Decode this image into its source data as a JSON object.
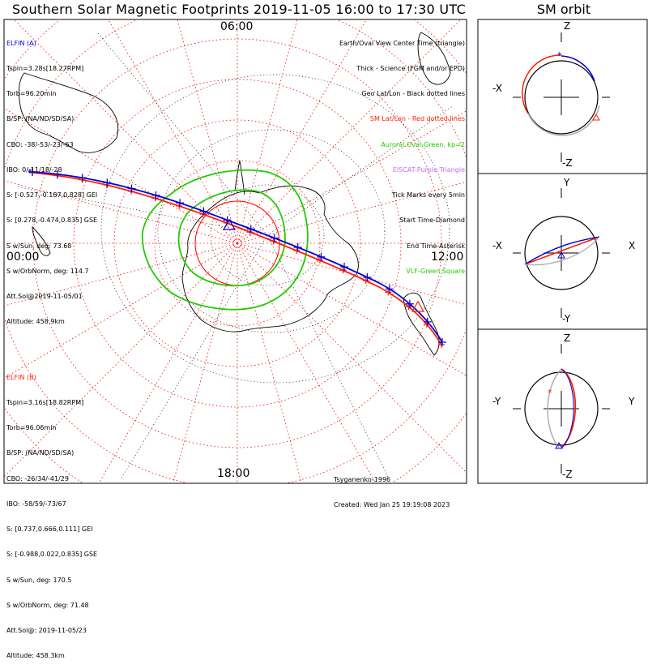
{
  "title": "Southern Solar Magnetic Footprints 2019-11-05 16:00 to 17:30 UTC",
  "sm_title": "SM orbit",
  "clock": {
    "top": "06:00",
    "left": "00:00",
    "right": "12:00",
    "bottom": "18:00"
  },
  "elfin_a": {
    "lines": [
      "ELFIN (A)",
      "Tspin=3.28s[18.27RPM]",
      "Torb=96.20min",
      "B/SP: (NA/ND/SD/SA)",
      "CBO: -38/-53/-23/-63",
      "IBO: 0/-11/18/-28",
      "S: [-0.527,-0.187,0.828] GEI",
      "S: [0.278,-0.474,0.835] GSE",
      "S w/Sun, deg: 73.68",
      "S w/OrbNorm, deg: 114.7",
      "Att.Sol@2019-11-05/01",
      "Altitude: 458.9km"
    ]
  },
  "elfin_b": {
    "lines": [
      "ELFIN (B)",
      "Tspin=3.16s[18.82RPM]",
      "Torb=96.06min",
      "B/SP: (NA/ND/SD/SA)",
      "CBO: -26/34/-41/29",
      "IBO: -58/59/-73/67",
      "S: [0.737,0.666,0.111] GEI",
      "S: [-0.988,0.022,0.835] GSE",
      "S w/Sun, deg: 170.5",
      "S w/OrbNorm, deg: 71.48",
      "Att.Sol@: 2019-11-05/23",
      "Altitude: 458.3km"
    ]
  },
  "legend": {
    "black": [
      "Earth/Oval View Center Time (triangle)",
      "Thick - Science (FGM and/or EPD)",
      "Geo Lat/Lon - Black dotted lines"
    ],
    "red": "SM Lat/Lon - Red dotted lines",
    "green": "Auroral Oval-Green, kp=2",
    "purple": "EISCAT-Purple Triangle",
    "black2": [
      "Tick Marks every 5min",
      "Start Time-Diamond",
      "End Time-Asterisk"
    ],
    "green2": "VLF-Green Square"
  },
  "footer": {
    "author": "Tsyganenko-1996",
    "created": "Created: Wed Jan 25 19:19:08 2023"
  },
  "sm_panels": [
    {
      "axes": {
        "top": "Z",
        "bottom": "-Z",
        "left": "-X",
        "right": ""
      }
    },
    {
      "axes": {
        "top": "Y",
        "bottom": "-Y",
        "left": "-X",
        "right": "X"
      }
    },
    {
      "axes": {
        "top": "Z",
        "bottom": "-Z",
        "left": "-Y",
        "right": "Y"
      }
    }
  ],
  "colors": {
    "elfin_a": "#0000d8",
    "elfin_b": "#ff2000",
    "oval": "#22cc00",
    "sm_grid": "#ff0000",
    "geo_grid": "#000000",
    "orbit_plane": "#aaaaaa"
  },
  "chart_data": [
    {
      "type": "polar-map",
      "description_fields": "southern hemisphere footprints, SM coordinates",
      "series": [
        {
          "name": "ELFIN (A)"
        },
        {
          "name": "ELFIN (B)"
        }
      ]
    }
  ]
}
